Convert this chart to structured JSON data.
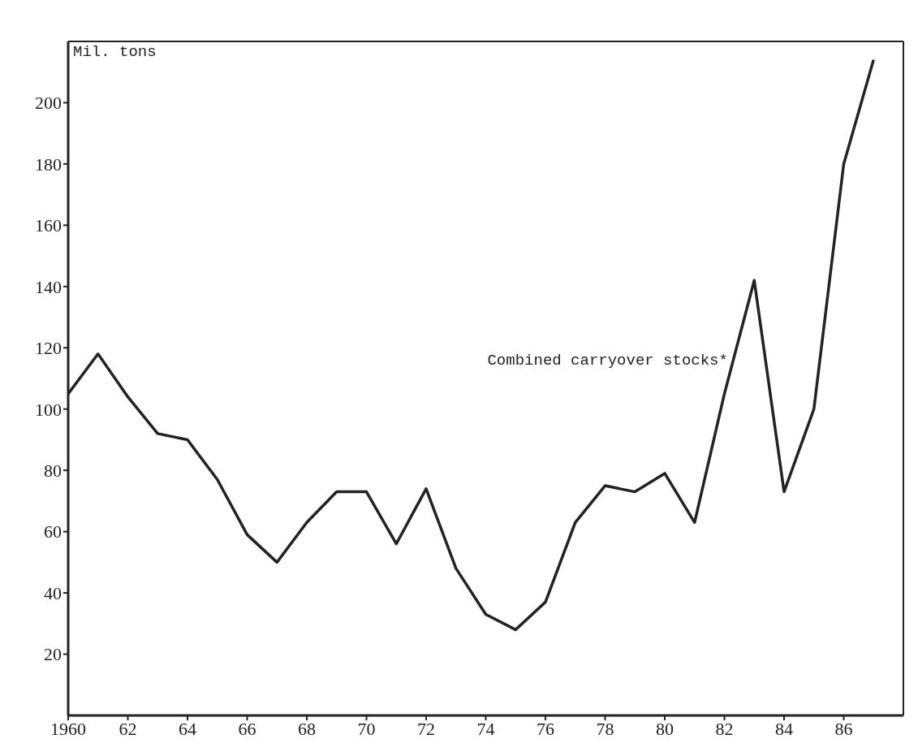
{
  "chart_data": {
    "type": "line",
    "ylabel": "Mil. tons",
    "x": [
      1960,
      1961,
      1962,
      1963,
      1964,
      1965,
      1966,
      1967,
      1968,
      1969,
      1970,
      1971,
      1972,
      1973,
      1974,
      1975,
      1976,
      1977,
      1978,
      1979,
      1980,
      1981,
      1982,
      1983,
      1984,
      1985,
      1986,
      1987
    ],
    "series": [
      {
        "name": "Combined carryover stocks*",
        "color": "#222222",
        "values": [
          105,
          118,
          104,
          92,
          90,
          77,
          59,
          50,
          63,
          73,
          73,
          56,
          74,
          48,
          33,
          28,
          37,
          63,
          75,
          73,
          79,
          63,
          105,
          142,
          73,
          100,
          180,
          214
        ]
      }
    ],
    "xlim": [
      1960,
      1988
    ],
    "xticks": [
      {
        "value": 1960,
        "label": "1960"
      },
      {
        "value": 1962,
        "label": "62"
      },
      {
        "value": 1964,
        "label": "64"
      },
      {
        "value": 1966,
        "label": "66"
      },
      {
        "value": 1968,
        "label": "68"
      },
      {
        "value": 1970,
        "label": "70"
      },
      {
        "value": 1972,
        "label": "72"
      },
      {
        "value": 1974,
        "label": "74"
      },
      {
        "value": 1976,
        "label": "76"
      },
      {
        "value": 1978,
        "label": "78"
      },
      {
        "value": 1980,
        "label": "80"
      },
      {
        "value": 1982,
        "label": "82"
      },
      {
        "value": 1984,
        "label": "84"
      },
      {
        "value": 1986,
        "label": "86"
      }
    ],
    "ylim": [
      0,
      220
    ],
    "yticks": [
      20,
      40,
      60,
      80,
      100,
      120,
      140,
      160,
      180,
      200
    ],
    "legend": false,
    "marker": "none",
    "line_style": "solid"
  }
}
